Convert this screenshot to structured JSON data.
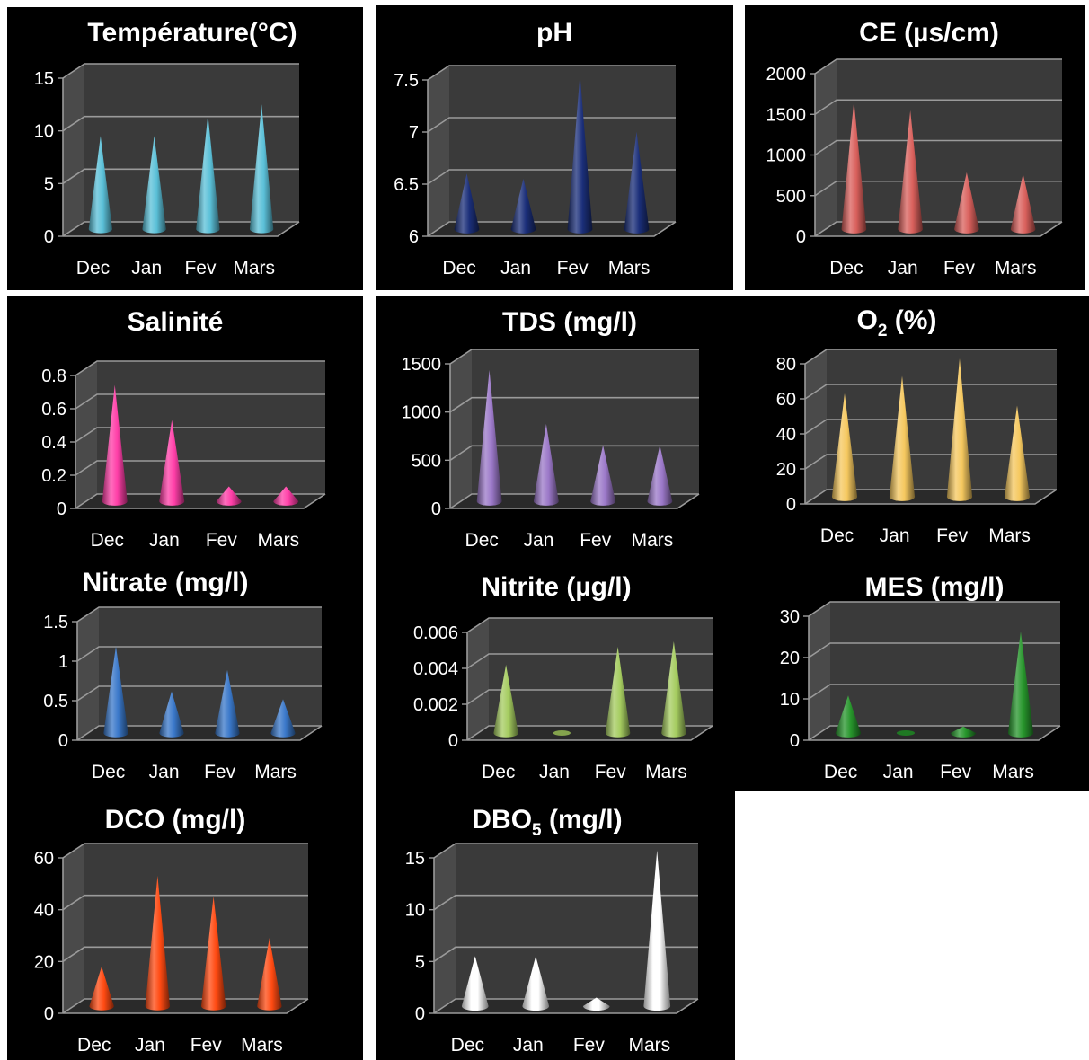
{
  "style": {
    "panel_background": "#000000",
    "plot_wall": "#3a3a3a",
    "plot_floor": "#2a2a2a",
    "gridline": "#9a9a9a",
    "text": "#ffffff"
  },
  "chart_data": [
    {
      "id": "temperature",
      "type": "bar",
      "bar_shape": "cone",
      "title": "Température(°C)",
      "categories": [
        "Dec",
        "Jan",
        "Fev",
        "Mars"
      ],
      "values": [
        9.0,
        9.0,
        11.0,
        12.0
      ],
      "ylim": [
        0,
        15
      ],
      "yticks": [
        "0",
        "5",
        "10",
        "15"
      ],
      "color": "#5bc0d8",
      "grid": true
    },
    {
      "id": "ph",
      "type": "bar",
      "bar_shape": "cone",
      "title": "pH",
      "categories": [
        "Dec",
        "Jan",
        "Fev",
        "Mars"
      ],
      "values": [
        6.55,
        6.5,
        7.5,
        6.95
      ],
      "ylim": [
        6,
        7.5
      ],
      "yticks": [
        "6",
        "6.5",
        "7",
        "7.5"
      ],
      "color": "#1b2f7a",
      "grid": true
    },
    {
      "id": "ce",
      "type": "bar",
      "bar_shape": "cone",
      "title": "CE (µs/cm)",
      "categories": [
        "Dec",
        "Jan",
        "Fev",
        "Mars"
      ],
      "values": [
        1600,
        1480,
        720,
        700
      ],
      "ylim": [
        0,
        2000
      ],
      "yticks": [
        "0",
        "500",
        "1000",
        "1500",
        "2000"
      ],
      "color": "#d9605c",
      "grid": true
    },
    {
      "id": "salinite",
      "type": "bar",
      "bar_shape": "cone",
      "title": "Salinité",
      "categories": [
        "Dec",
        "Jan",
        "Fev",
        "Mars"
      ],
      "values": [
        0.71,
        0.5,
        0.1,
        0.1
      ],
      "ylim": [
        0,
        0.8
      ],
      "yticks": [
        "0",
        "0.2",
        "0.4",
        "0.6",
        "0.8"
      ],
      "color": "#ff3fa8",
      "grid": true
    },
    {
      "id": "tds",
      "type": "bar",
      "bar_shape": "cone",
      "title": "TDS (mg/l)",
      "categories": [
        "Dec",
        "Jan",
        "Fev",
        "Mars"
      ],
      "values": [
        1380,
        820,
        600,
        600
      ],
      "ylim": [
        0,
        1500
      ],
      "yticks": [
        "0",
        "500",
        "1000",
        "1500"
      ],
      "color": "#9b78c8",
      "grid": true
    },
    {
      "id": "o2",
      "type": "bar",
      "bar_shape": "cone",
      "title": "O",
      "title_sub": "2",
      "title_after": " (%)",
      "categories": [
        "Dec",
        "Jan",
        "Fev",
        "Mars"
      ],
      "values": [
        60,
        70,
        80,
        53
      ],
      "ylim": [
        0,
        80
      ],
      "yticks": [
        "0",
        "20",
        "40",
        "60",
        "80"
      ],
      "color": "#f5c85f",
      "grid": true
    },
    {
      "id": "nitrate",
      "type": "bar",
      "bar_shape": "cone",
      "title": "Nitrate (mg/l)",
      "categories": [
        "Dec",
        "Jan",
        "Fev",
        "Mars"
      ],
      "values": [
        1.12,
        0.55,
        0.82,
        0.45
      ],
      "ylim": [
        0,
        1.5
      ],
      "yticks": [
        "0",
        "0.5",
        "1",
        "1.5"
      ],
      "color": "#3a78c9",
      "grid": true
    },
    {
      "id": "nitrite",
      "type": "bar",
      "bar_shape": "cone",
      "title": "Nitrite (µg/l)",
      "categories": [
        "Dec",
        "Jan",
        "Fev",
        "Mars"
      ],
      "values": [
        0.0039,
        0.0,
        0.0049,
        0.0052
      ],
      "ylim": [
        0,
        0.006
      ],
      "yticks": [
        "0",
        "0.002",
        "0.004",
        "0.006"
      ],
      "color": "#a5cc60",
      "grid": true
    },
    {
      "id": "mes",
      "type": "bar",
      "bar_shape": "cone",
      "title": "MES (mg/l)",
      "categories": [
        "Dec",
        "Jan",
        "Fev",
        "Mars"
      ],
      "values": [
        9.5,
        0.5,
        2.0,
        25.0
      ],
      "ylim": [
        0,
        30
      ],
      "yticks": [
        "0",
        "10",
        "20",
        "30"
      ],
      "color": "#27962c",
      "grid": true
    },
    {
      "id": "dco",
      "type": "bar",
      "bar_shape": "cone",
      "title": "DCO (mg/l)",
      "categories": [
        "Dec",
        "Jan",
        "Fev",
        "Mars"
      ],
      "values": [
        16,
        51,
        43,
        27
      ],
      "ylim": [
        0,
        60
      ],
      "yticks": [
        "0",
        "20",
        "40",
        "60"
      ],
      "color": "#ff4a12",
      "grid": true
    },
    {
      "id": "dbo5",
      "type": "bar",
      "bar_shape": "cone",
      "title": "DBO",
      "title_sub": "5",
      "title_after": " (mg/l)",
      "categories": [
        "Dec",
        "Jan",
        "Fev",
        "Mars"
      ],
      "values": [
        5.0,
        5.0,
        1.0,
        15.2
      ],
      "ylim": [
        0,
        15
      ],
      "yticks": [
        "0",
        "5",
        "10",
        "15"
      ],
      "color": "#ffffff",
      "grid": true
    }
  ]
}
